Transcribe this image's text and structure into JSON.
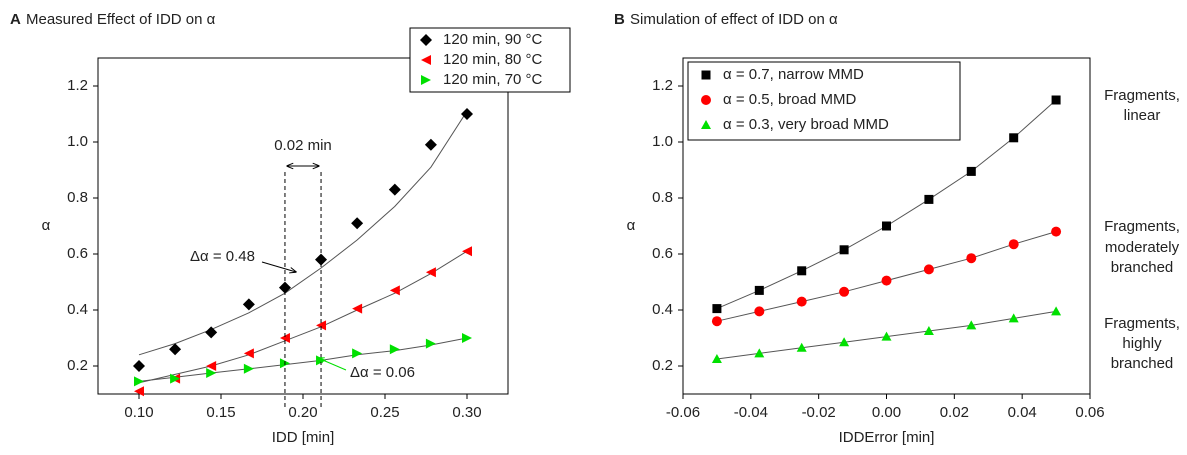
{
  "chart_data": [
    {
      "type": "scatter",
      "panel_label": "A",
      "title": "Measured Effect of IDD on α",
      "x_label": "IDD [min]",
      "y_label": "α",
      "xlim": [
        0.075,
        0.325
      ],
      "ylim": [
        0.1,
        1.3
      ],
      "xticks": [
        {
          "value": 0.1,
          "label": "0.10"
        },
        0.15,
        {
          "value": 0.2,
          "label": "0.20"
        },
        0.25,
        {
          "value": 0.3,
          "label": "0.30"
        }
      ],
      "yticks": [
        0.2,
        0.4,
        0.6,
        0.8,
        {
          "value": 1,
          "label": "1.0"
        },
        1.2
      ],
      "x": [
        0.1,
        0.122,
        0.144,
        0.167,
        0.189,
        0.211,
        0.233,
        0.256,
        0.278,
        0.3
      ],
      "series": [
        {
          "name": "120 min, 90 °C",
          "color": "#000000",
          "marker": "diamond",
          "values": [
            0.2,
            0.26,
            0.32,
            0.42,
            0.48,
            0.58,
            0.71,
            0.83,
            0.99,
            1.1
          ],
          "fit": [
            0.24,
            0.28,
            0.33,
            0.39,
            0.46,
            0.55,
            0.65,
            0.77,
            0.91,
            1.11
          ]
        },
        {
          "name": "120 min, 80 °C",
          "color": "#ff0000",
          "marker": "triangle-left",
          "values": [
            0.11,
            0.155,
            0.2,
            0.245,
            0.3,
            0.345,
            0.405,
            0.47,
            0.535,
            0.61
          ],
          "fit": [
            0.14,
            0.17,
            0.2,
            0.24,
            0.29,
            0.34,
            0.4,
            0.46,
            0.53,
            0.61
          ]
        },
        {
          "name": "120 min, 70 °C",
          "color": "#00e000",
          "marker": "triangle-right",
          "values": [
            0.145,
            0.155,
            0.175,
            0.19,
            0.21,
            0.22,
            0.245,
            0.26,
            0.28,
            0.3
          ],
          "fit": [
            0.145,
            0.16,
            0.175,
            0.19,
            0.205,
            0.22,
            0.24,
            0.255,
            0.275,
            0.3
          ]
        }
      ],
      "annotations": [
        "0.02 min",
        "Δα = 0.48",
        "Δα = 0.06"
      ]
    },
    {
      "type": "scatter",
      "panel_label": "B",
      "title": "Simulation of effect of IDD on α",
      "x_label": "IDDError [min]",
      "y_label": "α",
      "xlim": [
        -0.06,
        0.06
      ],
      "ylim": [
        0.1,
        1.3
      ],
      "xticks": [
        -0.06,
        -0.04,
        -0.02,
        {
          "value": 0,
          "label": "0.00"
        },
        0.02,
        0.04,
        0.06
      ],
      "yticks": [
        0.2,
        0.4,
        0.6,
        0.8,
        {
          "value": 1,
          "label": "1.0"
        },
        1.2
      ],
      "x": [
        -0.05,
        -0.0375,
        -0.025,
        -0.0125,
        0,
        0.0125,
        0.025,
        0.0375,
        0.05
      ],
      "series": [
        {
          "name": "α = 0.7, narrow MMD",
          "color": "#000000",
          "marker": "square",
          "values": [
            0.405,
            0.47,
            0.54,
            0.615,
            0.7,
            0.795,
            0.895,
            1.015,
            1.15
          ]
        },
        {
          "name": "α = 0.5, broad MMD",
          "color": "#ff0000",
          "marker": "circle",
          "values": [
            0.36,
            0.395,
            0.43,
            0.465,
            0.505,
            0.545,
            0.585,
            0.635,
            0.68
          ]
        },
        {
          "name": "α = 0.3, very broad MMD",
          "color": "#00e000",
          "marker": "triangle-up",
          "values": [
            0.225,
            0.245,
            0.265,
            0.285,
            0.305,
            0.325,
            0.345,
            0.37,
            0.395
          ]
        }
      ],
      "annotations": [
        [
          "Fragments,",
          "linear"
        ],
        [
          "Fragments,",
          "moderately",
          "branched"
        ],
        [
          "Fragments,",
          "highly",
          "branched"
        ]
      ]
    }
  ]
}
